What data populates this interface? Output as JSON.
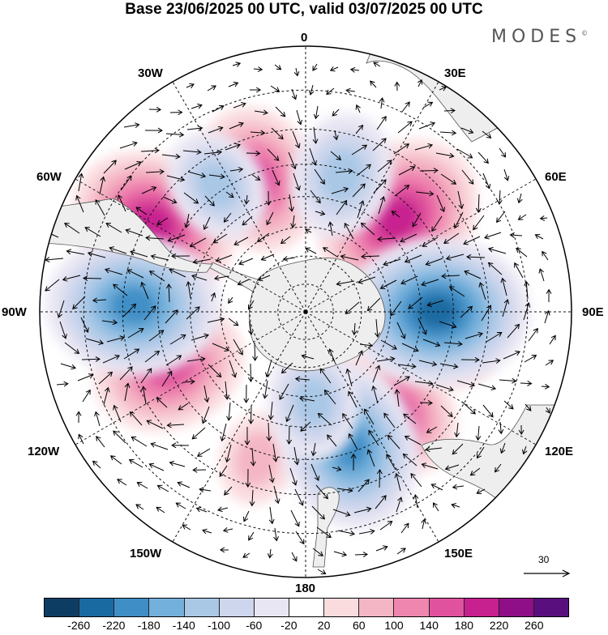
{
  "title": "Base 23/06/2025 00 UTC, valid 03/07/2025 00 UTC",
  "brand": "MODES",
  "brand_mark": "©",
  "longitude_labels": {
    "top": "0",
    "bottom": "180",
    "left": "90W",
    "right": "90E",
    "w30": "30W",
    "e30": "30E",
    "w60": "60W",
    "e60": "60E",
    "w120": "120W",
    "e120": "120E",
    "w150": "150W",
    "e150": "150E"
  },
  "reference_vector": {
    "label": "30"
  },
  "colorbar": {
    "colors": [
      "#0d3d63",
      "#1a6aa2",
      "#3f8fc6",
      "#74b0dc",
      "#a9c8e6",
      "#cdd6ec",
      "#e9e6f3",
      "#ffffff",
      "#fadcdf",
      "#f4b6c4",
      "#ef86b0",
      "#e0529d",
      "#c7208f",
      "#8e0f88",
      "#5a0f7e"
    ],
    "ticks": [
      "-260",
      "-220",
      "-180",
      "-140",
      "-100",
      "-60",
      "-20",
      "20",
      "60",
      "100",
      "140",
      "180",
      "220",
      "260"
    ]
  },
  "anomaly_centers": [
    {
      "sign": "positive",
      "value": 210,
      "lon": 45,
      "lat": -45
    },
    {
      "sign": "positive",
      "value": 200,
      "lon": -60,
      "lat": -32
    },
    {
      "sign": "positive",
      "value": 160,
      "lon": -20,
      "lat": -42
    },
    {
      "sign": "positive",
      "value": 170,
      "lon": -112,
      "lat": -40
    },
    {
      "sign": "positive",
      "value": 140,
      "lon": 138,
      "lat": -44
    },
    {
      "sign": "positive",
      "value": 100,
      "lon": 157,
      "lat": -52
    },
    {
      "sign": "positive",
      "value": 60,
      "lon": -162,
      "lat": -38
    },
    {
      "sign": "positive",
      "value": 60,
      "lon": 105,
      "lat": -40
    },
    {
      "sign": "negative",
      "value": -230,
      "lon": 90,
      "lat": -45
    },
    {
      "sign": "negative",
      "value": -210,
      "lon": -88,
      "lat": -33
    },
    {
      "sign": "negative",
      "value": -120,
      "lon": 15,
      "lat": -42
    },
    {
      "sign": "negative",
      "value": -200,
      "lon": 162,
      "lat": -42
    },
    {
      "sign": "negative",
      "value": -100,
      "lon": -35,
      "lat": -38
    },
    {
      "sign": "negative",
      "value": -100,
      "lon": 175,
      "lat": -58
    }
  ]
}
